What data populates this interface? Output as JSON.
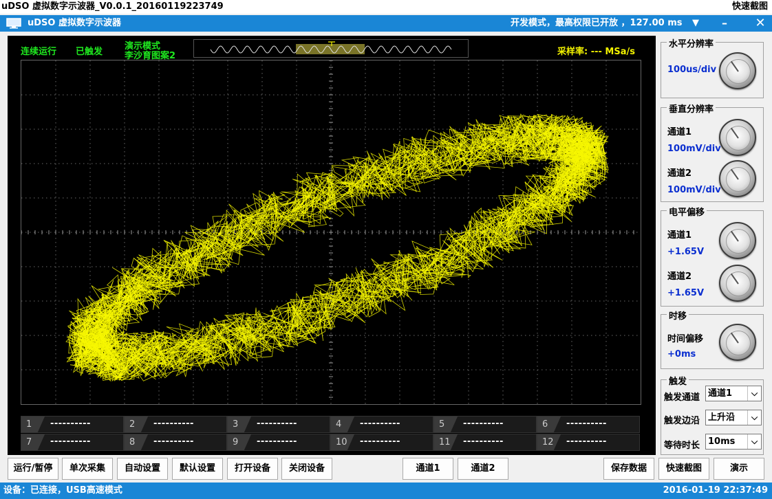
{
  "window": {
    "title": "uDSO 虚拟数字示波器_V0.0.1_20160119223749",
    "quick_capture": "快速截图"
  },
  "app_bar": {
    "name": "uDSO 虚拟数字示波器",
    "status": "开发模式，最高权限已开放 ，127.00 ms",
    "dropdown_icon": "▼",
    "minimize_icon": "–",
    "close_icon": "✕"
  },
  "scope": {
    "run_state": "连续运行",
    "trigger_state": "已触发",
    "demo_mode": "演示模式",
    "demo_pattern": "李沙育图案2",
    "sample_rate": "采样率: --- MSa/s",
    "colors": {
      "trace": "#f7f700",
      "status_text": "#1fe81f",
      "background": "#000000"
    }
  },
  "measurements": [
    {
      "id": "1",
      "value": "----------"
    },
    {
      "id": "2",
      "value": "----------"
    },
    {
      "id": "3",
      "value": "----------"
    },
    {
      "id": "4",
      "value": "----------"
    },
    {
      "id": "5",
      "value": "----------"
    },
    {
      "id": "6",
      "value": "----------"
    },
    {
      "id": "7",
      "value": "----------"
    },
    {
      "id": "8",
      "value": "----------"
    },
    {
      "id": "9",
      "value": "----------"
    },
    {
      "id": "10",
      "value": "----------"
    },
    {
      "id": "11",
      "value": "----------"
    },
    {
      "id": "12",
      "value": "----------"
    }
  ],
  "panel": {
    "horizontal": {
      "title": "水平分辨率",
      "value": "100us/div"
    },
    "vertical": {
      "title": "垂直分辨率",
      "ch1_label": "通道1",
      "ch1_value": "100mV/div",
      "ch2_label": "通道2",
      "ch2_value": "100mV/div"
    },
    "offset": {
      "title": "电平偏移",
      "ch1_label": "通道1",
      "ch1_value": "+1.65V",
      "ch2_label": "通道2",
      "ch2_value": "+1.65V"
    },
    "time_shift": {
      "title": "时移",
      "label": "时间偏移",
      "value": "+0ms"
    },
    "trigger": {
      "title": "触发",
      "channel_label": "触发通道",
      "channel_value": "通道1",
      "edge_label": "触发边沿",
      "edge_value": "上升沿",
      "wait_label": "等待时长",
      "wait_value": "10ms",
      "arrow": "⌵"
    }
  },
  "buttons": {
    "run_pause": "运行/暂停",
    "single": "单次采集",
    "auto": "自动设置",
    "default": "默认设置",
    "open": "打开设备",
    "close": "关闭设备",
    "ch1": "通道1",
    "ch2": "通道2",
    "save": "保存数据",
    "capture": "快速截图",
    "demo": "演示"
  },
  "status_bar": {
    "device": "设备：已连接，USB高速模式",
    "datetime": "2016-01-19 22:37:49"
  }
}
